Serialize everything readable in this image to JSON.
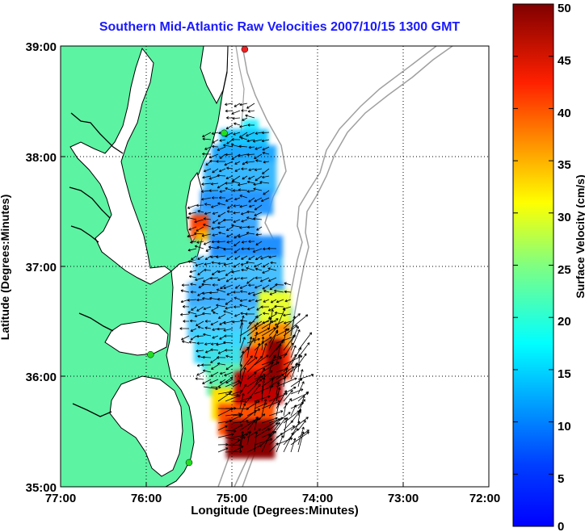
{
  "title": "Southern Mid-Atlantic Raw Velocities 2007/10/15 1300 GMT",
  "xlabel": "Longitude (Degrees:Minutes)",
  "ylabel": "Latitude (Degrees:Minutes)",
  "colorbar": {
    "label": "Surface Velocity (cm/s)",
    "min": 0,
    "max": 50,
    "ticks": [
      "0",
      "5",
      "10",
      "15",
      "20",
      "25",
      "30",
      "35",
      "40",
      "45",
      "50"
    ],
    "colormap": "jet"
  },
  "axes": {
    "xlim": [
      -77,
      -72
    ],
    "ylim": [
      35,
      39
    ],
    "xticks": [
      "77:00",
      "76:00",
      "75:00",
      "74:00",
      "73:00",
      "72:00"
    ],
    "yticks": [
      "35:00",
      "36:00",
      "37:00",
      "38:00",
      "39:00"
    ],
    "grid": "dotted"
  },
  "colors": {
    "land": "#5cf3a2",
    "coastline": "#000000",
    "bathymetry": "#a0a0a0",
    "title": "#1a1aff",
    "arrows": "#000000",
    "stations": "#22dd22",
    "station_alert": "#ee2222"
  },
  "stations": [
    {
      "lon": -74.85,
      "lat": 38.97,
      "status": "alert"
    },
    {
      "lon": -75.09,
      "lat": 38.21,
      "status": "ok"
    },
    {
      "lon": -75.95,
      "lat": 36.2,
      "status": "ok"
    },
    {
      "lon": -75.5,
      "lat": 35.22,
      "status": "ok"
    }
  ]
}
